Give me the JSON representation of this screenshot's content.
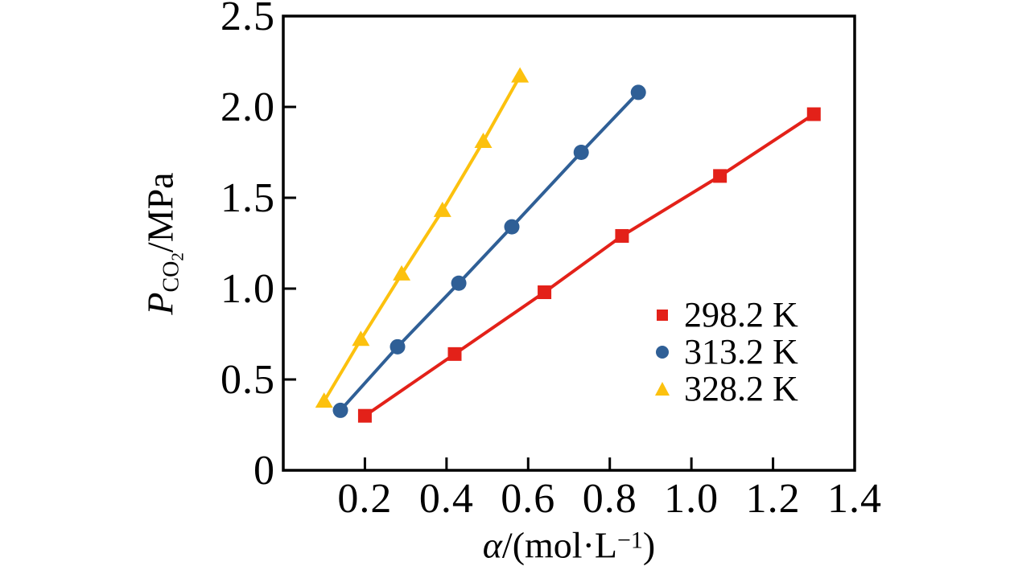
{
  "figure": {
    "background": "#ffffff",
    "frame_color": "#000000"
  },
  "chart_data": {
    "type": "line",
    "xlabel": "α/(mol·L⁻¹)",
    "ylabel": "P_CO2/MPa",
    "xlim": [
      0,
      1.4
    ],
    "ylim": [
      0,
      2.5
    ],
    "grid": false,
    "legend_position": "inside-right",
    "x_ticks": [
      0.2,
      0.4,
      0.6,
      0.8,
      1.0,
      1.2,
      1.4
    ],
    "x_tick_labels": [
      "0.2",
      "0.4",
      "0.6",
      "0.8",
      "1.0",
      "1.2",
      "1.4"
    ],
    "y_ticks": [
      0,
      0.5,
      1.0,
      1.5,
      2.0,
      2.5
    ],
    "y_tick_labels": [
      "0",
      "0.5",
      "1.0",
      "1.5",
      "2.0",
      "2.5"
    ],
    "series": [
      {
        "name": "298.2 K",
        "marker": "square",
        "color": "#e32119",
        "points": [
          [
            0.2,
            0.3
          ],
          [
            0.42,
            0.64
          ],
          [
            0.64,
            0.98
          ],
          [
            0.83,
            1.29
          ],
          [
            1.07,
            1.62
          ],
          [
            1.3,
            1.96
          ]
        ]
      },
      {
        "name": "313.2 K",
        "marker": "circle",
        "color": "#2f5f96",
        "points": [
          [
            0.14,
            0.33
          ],
          [
            0.28,
            0.68
          ],
          [
            0.43,
            1.03
          ],
          [
            0.56,
            1.34
          ],
          [
            0.73,
            1.75
          ],
          [
            0.87,
            2.08
          ]
        ]
      },
      {
        "name": "328.2 K",
        "marker": "triangle",
        "color": "#fcc10e",
        "points": [
          [
            0.1,
            0.38
          ],
          [
            0.19,
            0.72
          ],
          [
            0.29,
            1.08
          ],
          [
            0.39,
            1.43
          ],
          [
            0.49,
            1.81
          ],
          [
            0.58,
            2.17
          ]
        ]
      }
    ]
  },
  "axes": {
    "x_title_parts": {
      "var": "α",
      "mid": "/(mol·L",
      "sup": "−1",
      "end": ")"
    },
    "y_title_parts": {
      "var": "P",
      "sub": "CO",
      "subsub": "2",
      "end": "/MPa"
    }
  }
}
